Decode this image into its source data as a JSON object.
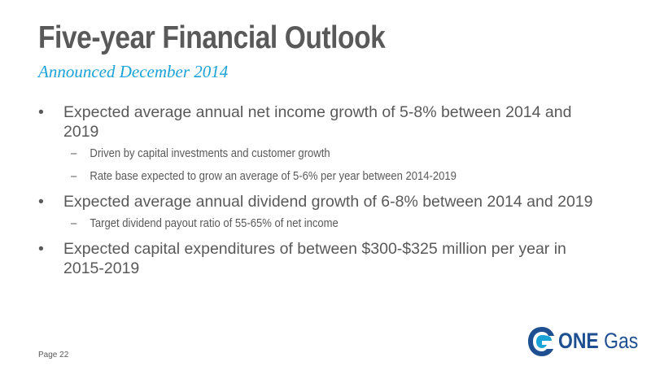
{
  "slide": {
    "title": "Five-year Financial Outlook",
    "subtitle": "Announced December 2014",
    "bullet_marker": "•",
    "sub_marker": "–",
    "bullets": [
      {
        "text": "Expected average annual net income growth of 5-8% between 2014 and 2019",
        "subs": [
          "Driven by capital investments and customer growth",
          "Rate base expected to grow an average of 5-6% per year between 2014-2019"
        ]
      },
      {
        "text": "Expected average annual dividend growth of 6-8% between 2014 and 2019",
        "subs": [
          "Target dividend payout ratio of 55-65% of net income"
        ]
      },
      {
        "text": "Expected capital expenditures of between $300-$325 million per year in 2015-2019",
        "subs": []
      }
    ],
    "footer": "Page 22"
  },
  "logo": {
    "brand": "ONE",
    "product": "Gas",
    "icon": "one-gas-swirl-icon",
    "colors": {
      "navy": "#1d4f91",
      "light_blue": "#1aa3d6"
    }
  }
}
